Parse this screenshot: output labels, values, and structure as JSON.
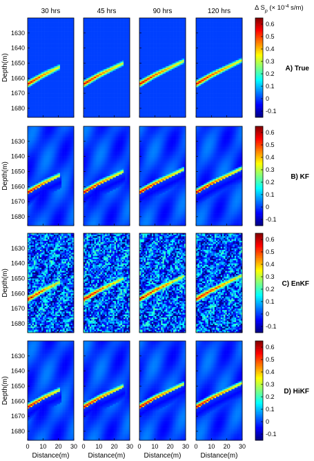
{
  "figure": {
    "colorbar_label_main": "Δ S",
    "colorbar_label_sub": "p",
    "colorbar_label_units": "(× 10",
    "colorbar_label_exp": "-4",
    "colorbar_label_tail": "s/m)"
  },
  "chart_data": {
    "type": "heatmap",
    "columns": [
      "30 hrs",
      "45 hrs",
      "90 hrs",
      "120 hrs"
    ],
    "rows": [
      {
        "label": "A) True",
        "noise": "none"
      },
      {
        "label": "B) KF",
        "noise": "smooth"
      },
      {
        "label": "C) EnKF",
        "noise": "high"
      },
      {
        "label": "D) HiKF",
        "noise": "smooth"
      }
    ],
    "xlabel": "Distance(m)",
    "ylabel": "Depth(m)",
    "x_ticks": [
      0,
      10,
      20,
      30
    ],
    "y_ticks": [
      1630,
      1640,
      1650,
      1660,
      1670,
      1680
    ],
    "xlim": [
      0,
      30
    ],
    "ylim": [
      1620,
      1686
    ],
    "colorbar_ticks": [
      -0.1,
      0,
      0.1,
      0.2,
      0.3,
      0.4,
      0.5,
      0.6
    ],
    "clim": [
      -0.15,
      0.65
    ],
    "plume_tip_distance_m": [
      20,
      25,
      28,
      30
    ],
    "plume_path": [
      [
        0,
        1664
      ],
      [
        10,
        1658
      ],
      [
        20,
        1653
      ],
      [
        30,
        1648
      ]
    ]
  }
}
